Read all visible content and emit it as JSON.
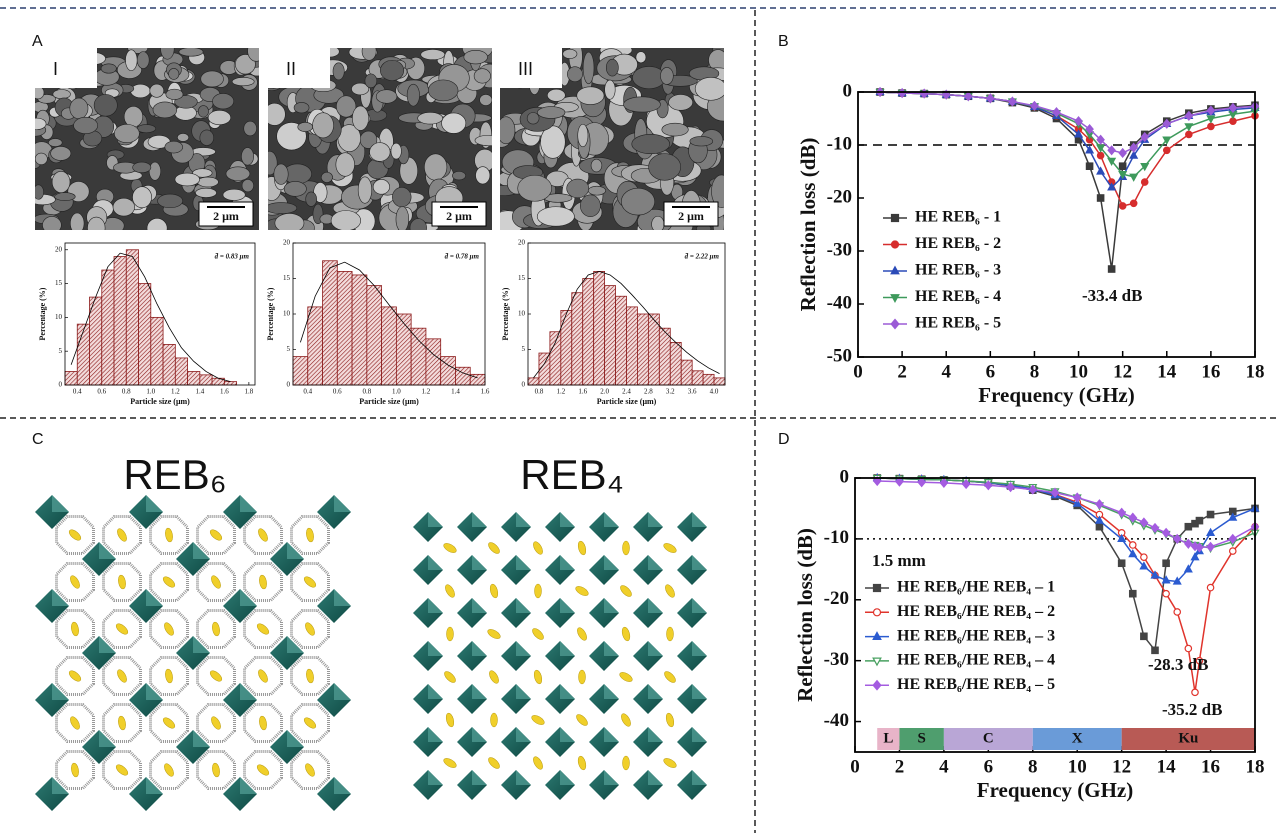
{
  "panel_labels": [
    "A",
    "B",
    "C",
    "D"
  ],
  "sem_images": [
    {
      "label": "I",
      "scale_bar": "2 μm"
    },
    {
      "label": "II",
      "scale_bar": "2 μm"
    },
    {
      "label": "III",
      "scale_bar": "2 μm"
    }
  ],
  "crystal_structures": [
    {
      "title": "REB₆"
    },
    {
      "title": "REB₄"
    }
  ],
  "chart_data": [
    {
      "type": "histogram",
      "xlabel": "Particle size (μm)",
      "ylabel": "Percentage (%)",
      "annotation": "d̄ = 0.83 μm",
      "color": "#8b1a1a",
      "bins": [
        0.3,
        0.4,
        0.5,
        0.6,
        0.7,
        0.8,
        0.9,
        1.0,
        1.1,
        1.2,
        1.3,
        1.4,
        1.5,
        1.6,
        1.7
      ],
      "counts": [
        2,
        9,
        13,
        17,
        19,
        20,
        15,
        10,
        6,
        4,
        2,
        1.5,
        1,
        0.5
      ],
      "fit": [
        3,
        8,
        13,
        17.5,
        19.5,
        19,
        16,
        12,
        8.5,
        5.5,
        3.5,
        2,
        1,
        0.5
      ],
      "xlim": [
        0.3,
        1.85
      ],
      "ylim": [
        0,
        21
      ],
      "xticks": [
        0.4,
        0.6,
        0.8,
        {
          "value": 1,
          "label": "1.0"
        },
        1.2,
        1.4,
        1.6,
        1.8
      ],
      "yticks": [
        0,
        5,
        10,
        15,
        20
      ]
    },
    {
      "type": "histogram",
      "xlabel": "Particle size (μm)",
      "ylabel": "Percentage (%)",
      "annotation": "d̄ = 0.78 μm",
      "color": "#8b1a1a",
      "bins": [
        0.3,
        0.4,
        0.5,
        0.6,
        0.7,
        0.8,
        0.9,
        1.0,
        1.1,
        1.2,
        1.3,
        1.4,
        1.5,
        1.6
      ],
      "counts": [
        4,
        11,
        17.5,
        16,
        15.5,
        14,
        11,
        10,
        8,
        6.5,
        4,
        2.5,
        1.5
      ],
      "fit": [
        6,
        12.5,
        16.5,
        17.3,
        16.2,
        14,
        11.3,
        8.7,
        6.3,
        4.3,
        2.8,
        1.7,
        1
      ],
      "xlim": [
        0.3,
        1.6
      ],
      "ylim": [
        0,
        20
      ],
      "xticks": [
        0.4,
        0.6,
        0.8,
        {
          "value": 1,
          "label": "1.0"
        },
        1.2,
        1.4,
        1.6
      ],
      "yticks": [
        0,
        5,
        10,
        15,
        20
      ]
    },
    {
      "type": "histogram",
      "xlabel": "Particle size (μm)",
      "ylabel": "Percentage (%)",
      "annotation": "d̄ = 2.22 μm",
      "color": "#8b1a1a",
      "bins": [
        0.6,
        0.8,
        1.0,
        1.2,
        1.4,
        1.6,
        1.8,
        2.0,
        2.2,
        2.4,
        2.6,
        2.8,
        3.0,
        3.2,
        3.4,
        3.6,
        3.8,
        4.0,
        4.2
      ],
      "counts": [
        1,
        4.5,
        7.5,
        10.5,
        13,
        15,
        16,
        14,
        12.5,
        11,
        10,
        10,
        8,
        6,
        3.5,
        2,
        1.5,
        1
      ],
      "fit": [
        1,
        3,
        6,
        10,
        13.5,
        15.5,
        16,
        15.5,
        14.3,
        12.7,
        11,
        9.2,
        7.5,
        6,
        4.6,
        3.4,
        2.4,
        1.6
      ],
      "xlim": [
        0.6,
        4.2
      ],
      "ylim": [
        0,
        20
      ],
      "xticks": [
        0.8,
        1.2,
        1.6,
        {
          "value": 2,
          "label": "2.0"
        },
        2.4,
        2.8,
        3.2,
        3.6,
        {
          "value": 4,
          "label": "4.0"
        }
      ],
      "yticks": [
        0,
        5,
        10,
        15,
        20
      ]
    },
    {
      "type": "line",
      "xlabel": "Frequency (GHz)",
      "ylabel": "Reflection loss (dB)",
      "annotations": [
        "-33.4 dB"
      ],
      "reference_line": -10,
      "x": [
        1,
        2,
        3,
        4,
        5,
        6,
        7,
        8,
        9,
        10,
        10.5,
        11,
        11.5,
        12,
        12.5,
        13,
        14,
        15,
        16,
        17,
        18
      ],
      "series": [
        {
          "name": "HE REB₆ - 1",
          "color": "#3a3a3a",
          "marker": "square",
          "values": [
            0,
            -0.2,
            -0.3,
            -0.5,
            -0.8,
            -1.2,
            -2,
            -3,
            -5,
            -9,
            -14,
            -20,
            -33.4,
            -14,
            -10,
            -8,
            -5.5,
            -4,
            -3.2,
            -2.8,
            -2.5
          ]
        },
        {
          "name": "HE REB₆ - 2",
          "color": "#d62d2d",
          "marker": "circle",
          "values": [
            0,
            -0.2,
            -0.3,
            -0.5,
            -0.8,
            -1.2,
            -1.8,
            -2.8,
            -4.5,
            -7,
            -9,
            -12,
            -17,
            -21.5,
            -21,
            -17,
            -11,
            -8,
            -6.5,
            -5.5,
            -4.5
          ]
        },
        {
          "name": "HE REB₆ - 3",
          "color": "#2b4bb8",
          "marker": "triangle",
          "values": [
            0,
            -0.2,
            -0.3,
            -0.5,
            -0.8,
            -1.2,
            -1.8,
            -2.8,
            -4.5,
            -8,
            -11,
            -15,
            -18,
            -16,
            -12,
            -9,
            -6,
            -4.5,
            -3.8,
            -3.3,
            -3
          ]
        },
        {
          "name": "HE REB₆ - 4",
          "color": "#3e9a5c",
          "marker": "triangle-down",
          "values": [
            0,
            -0.2,
            -0.3,
            -0.5,
            -0.8,
            -1.2,
            -1.8,
            -2.7,
            -4,
            -6,
            -8,
            -10.5,
            -13,
            -15.5,
            -16,
            -14,
            -9,
            -6.5,
            -5,
            -4.2,
            -3.6
          ]
        },
        {
          "name": "HE REB₆ - 5",
          "color": "#9b5bd6",
          "marker": "diamond",
          "values": [
            0,
            -0.2,
            -0.3,
            -0.5,
            -0.8,
            -1.2,
            -1.8,
            -2.6,
            -3.8,
            -5.5,
            -7,
            -9,
            -11,
            -11.5,
            -10.5,
            -8.5,
            -6,
            -4.5,
            -3.5,
            -3,
            -2.7
          ]
        }
      ],
      "xlim": [
        0,
        18
      ],
      "ylim": [
        -50,
        0
      ],
      "xticks": [
        0,
        2,
        4,
        6,
        8,
        10,
        12,
        14,
        16,
        18
      ],
      "yticks": [
        -50,
        -40,
        -30,
        -20,
        -10,
        0
      ]
    },
    {
      "type": "line",
      "xlabel": "Frequency (GHz)",
      "ylabel": "Reflection loss (dB)",
      "annotations": [
        "1.5 mm",
        "-28.3 dB",
        "-35.2 dB"
      ],
      "reference_line": -10,
      "bands": [
        {
          "label": "L",
          "range": [
            1,
            2
          ],
          "color": "#e8b4c8"
        },
        {
          "label": "S",
          "range": [
            2,
            4
          ],
          "color": "#4f9e6e"
        },
        {
          "label": "C",
          "range": [
            4,
            8
          ],
          "color": "#b9a6d6"
        },
        {
          "label": "X",
          "range": [
            8,
            12
          ],
          "color": "#6a9bd8"
        },
        {
          "label": "Ku",
          "range": [
            12,
            18
          ],
          "color": "#b85a55"
        }
      ],
      "x": [
        1,
        2,
        3,
        4,
        5,
        6,
        7,
        8,
        9,
        10,
        11,
        12,
        12.5,
        13,
        13.5,
        14,
        14.5,
        15,
        15.3,
        15.5,
        16,
        17,
        18
      ],
      "series": [
        {
          "name": "HE REB₆/HE REB₄ – 1",
          "color": "#444444",
          "marker": "square",
          "values": [
            0,
            -0.1,
            -0.2,
            -0.3,
            -0.5,
            -0.8,
            -1.3,
            -2,
            -3,
            -4.5,
            -8,
            -14,
            -19,
            -26,
            -28.3,
            -14,
            -10,
            -8,
            -7.5,
            -7,
            -6,
            -5.5,
            -5
          ]
        },
        {
          "name": "HE REB₆/HE REB₄ – 2",
          "color": "#e0342c",
          "marker": "circle-open",
          "values": [
            0,
            -0.1,
            -0.2,
            -0.3,
            -0.5,
            -0.8,
            -1.2,
            -1.8,
            -2.7,
            -4,
            -6,
            -9,
            -11,
            -13,
            -16,
            -19,
            -22,
            -28,
            -35.2,
            -30,
            -18,
            -12,
            -8
          ]
        },
        {
          "name": "HE REB₆/HE REB₄ – 3",
          "color": "#2b5bd0",
          "marker": "triangle",
          "values": [
            0,
            -0.1,
            -0.2,
            -0.3,
            -0.5,
            -0.8,
            -1.2,
            -1.8,
            -2.8,
            -4.2,
            -7,
            -10,
            -12.5,
            -14.5,
            -16,
            -16.8,
            -17,
            -15,
            -13,
            -12,
            -9,
            -6.5,
            -5
          ]
        },
        {
          "name": "HE REB₆/HE REB₄ – 4",
          "color": "#48a060",
          "marker": "triangle-down-open",
          "values": [
            0,
            -0.1,
            -0.2,
            -0.3,
            -0.5,
            -0.7,
            -1,
            -1.5,
            -2.2,
            -3.2,
            -4.5,
            -6,
            -7,
            -7.8,
            -8.5,
            -9.2,
            -10,
            -10.8,
            -11,
            -11.2,
            -11.5,
            -10.5,
            -9
          ]
        },
        {
          "name": "HE REB₆/HE REB₄ – 5",
          "color": "#a45ce0",
          "marker": "diamond",
          "values": [
            -0.5,
            -0.6,
            -0.7,
            -0.8,
            -1,
            -1.2,
            -1.5,
            -1.9,
            -2.4,
            -3.2,
            -4.3,
            -5.7,
            -6.5,
            -7.3,
            -8.2,
            -9,
            -10,
            -10.8,
            -11.2,
            -11.4,
            -11.3,
            -10,
            -8
          ]
        }
      ],
      "xlim": [
        0,
        18
      ],
      "ylim": [
        -45,
        0
      ],
      "xticks": [
        0,
        2,
        4,
        6,
        8,
        10,
        12,
        14,
        16,
        18
      ],
      "yticks": [
        -40,
        -30,
        -20,
        -10,
        0
      ]
    }
  ]
}
